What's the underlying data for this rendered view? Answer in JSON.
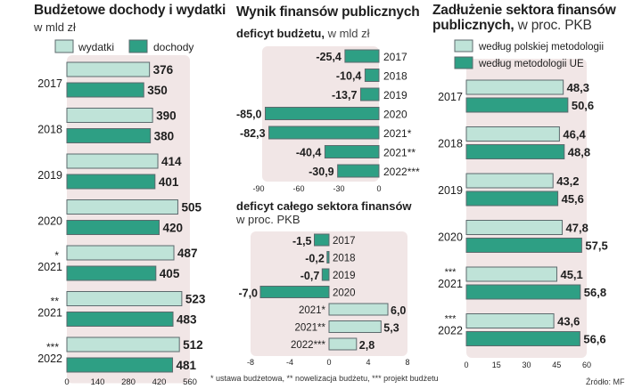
{
  "colors": {
    "light": "#bfe3d8",
    "dark": "#2e9f84",
    "panel": "#f1e6e6",
    "frame": "#5c6a6d",
    "text": "#1e1e1e"
  },
  "left": {
    "title": "Budżetowe dochody i wydatki",
    "subtitle": "w mld zł"
  },
  "middle": {
    "title": "Wynik finansów publicznych",
    "top_subtitle_bold": "deficyt budżetu,",
    "top_subtitle_unit": " w mld zł",
    "bottom_subtitle_line1": "deficyt całego sektora finansów",
    "bottom_subtitle_line2": "w proc. PKB"
  },
  "right": {
    "title_line1": "Zadłużenie sektora finansów",
    "title_line2_bold": "publicznych,",
    "title_line2_unit": " w proc. PKB"
  },
  "footer": {
    "note": "* ustawa budżetowa, ** nowelizacja budżetu, *** projekt budżetu",
    "source": "Źródło: MF"
  },
  "chart_data": [
    {
      "type": "bar",
      "orientation": "horizontal",
      "title": "Budżetowe dochody i wydatki",
      "ylabel": "w mld zł",
      "categories": [
        "2017",
        "2018",
        "2019",
        "2020",
        "*|2021",
        "**|2021",
        "***|2022"
      ],
      "series": [
        {
          "name": "wydatki",
          "values": [
            376,
            390,
            414,
            505,
            487,
            523,
            512
          ]
        },
        {
          "name": "dochody",
          "values": [
            350,
            380,
            401,
            420,
            405,
            483,
            481
          ]
        }
      ],
      "xlim": [
        0,
        560
      ],
      "xticks": [
        "0",
        "140",
        "280",
        "420",
        "560"
      ],
      "legend": "top"
    },
    {
      "type": "bar",
      "orientation": "horizontal",
      "title": "deficyt budżetu, w mld zł",
      "categories": [
        "2017",
        "2018",
        "2019",
        "2020",
        "2021*",
        "2021**",
        "2022***"
      ],
      "values": [
        -25.4,
        -10.4,
        -13.7,
        -85.0,
        -82.3,
        -40.4,
        -30.9
      ],
      "labels": [
        "-25,4",
        "-10,4",
        "-13,7",
        "-85,0",
        "-82,3",
        "-40,4",
        "-30,9"
      ],
      "xlim": [
        -90,
        0
      ],
      "xticks": [
        "-90",
        "-60",
        "-30",
        "0"
      ]
    },
    {
      "type": "bar",
      "orientation": "horizontal",
      "title": "deficyt całego sektora finansów, w proc. PKB",
      "categories": [
        "2017",
        "2018",
        "2019",
        "2020",
        "2021*",
        "2021**",
        "2022***"
      ],
      "values": [
        -1.5,
        -0.2,
        -0.7,
        -7.0,
        6.0,
        5.3,
        2.8
      ],
      "labels": [
        "-1,5",
        "-0,2",
        "-0,7",
        "-7,0",
        "6,0",
        "5,3",
        "2,8"
      ],
      "xlim": [
        -8,
        8
      ],
      "xticks": [
        "-8",
        "-4",
        "0",
        "4",
        "8"
      ]
    },
    {
      "type": "bar",
      "orientation": "horizontal",
      "title": "Zadłużenie sektora finansów publicznych, w proc. PKB",
      "categories": [
        "2017",
        "2018",
        "2019",
        "2020",
        "***|2021",
        "***|2022"
      ],
      "series": [
        {
          "name": "według polskiej metodologii",
          "values": [
            48.3,
            46.4,
            43.2,
            47.8,
            45.1,
            43.6
          ],
          "labels": [
            "48,3",
            "46,4",
            "43,2",
            "47,8",
            "45,1",
            "43,6"
          ]
        },
        {
          "name": "według metodologii UE",
          "values": [
            50.6,
            48.8,
            45.6,
            57.5,
            56.8,
            56.6
          ],
          "labels": [
            "50,6",
            "48,8",
            "45,6",
            "57,5",
            "56,8",
            "56,6"
          ]
        }
      ],
      "xlim": [
        0,
        60
      ],
      "xticks": [
        "0",
        "15",
        "30",
        "45",
        "60"
      ],
      "legend": "top"
    }
  ]
}
